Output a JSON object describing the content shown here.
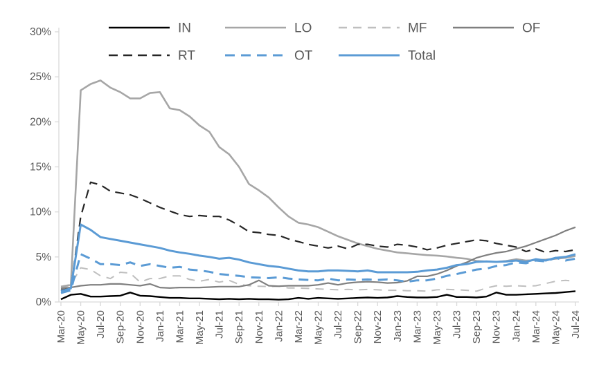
{
  "chart_data": {
    "type": "line",
    "title": "",
    "xlabel": "",
    "ylabel": "",
    "grid": false,
    "legend_position": "top",
    "yaxis": {
      "min": 0,
      "max": 30,
      "step": 5,
      "tick_labels": [
        "0%",
        "5%",
        "10%",
        "15%",
        "20%",
        "25%",
        "30%"
      ]
    },
    "xaxis": {
      "label_every_n_months": 2,
      "label_rotation_deg": -90,
      "first_label": "Mar-20",
      "last_label": "Jul-24"
    },
    "categories": [
      "Mar-20",
      "Apr-20",
      "May-20",
      "Jun-20",
      "Jul-20",
      "Aug-20",
      "Sep-20",
      "Oct-20",
      "Nov-20",
      "Dec-20",
      "Jan-21",
      "Feb-21",
      "Mar-21",
      "Apr-21",
      "May-21",
      "Jun-21",
      "Jul-21",
      "Aug-21",
      "Sep-21",
      "Oct-21",
      "Nov-21",
      "Dec-21",
      "Jan-22",
      "Feb-22",
      "Mar-22",
      "Apr-22",
      "May-22",
      "Jun-22",
      "Jul-22",
      "Aug-22",
      "Sep-22",
      "Oct-22",
      "Nov-22",
      "Dec-22",
      "Jan-23",
      "Feb-23",
      "Mar-23",
      "Apr-23",
      "May-23",
      "Jun-23",
      "Jul-23",
      "Aug-23",
      "Sep-23",
      "Oct-23",
      "Nov-23",
      "Dec-23",
      "Jan-24",
      "Feb-24",
      "Mar-24",
      "Apr-24",
      "May-24",
      "Jun-24",
      "Jul-24"
    ],
    "series": [
      {
        "name": "MF",
        "color": "#bfbfbf",
        "dash": "12 9",
        "width": 2,
        "values": [
          1.5,
          1.9,
          3.8,
          3.6,
          2.9,
          2.6,
          3.3,
          3.2,
          2.2,
          2.6,
          2.6,
          2.9,
          2.9,
          2.5,
          2.3,
          2.5,
          2.2,
          2.4,
          1.95,
          1.8,
          1.75,
          1.7,
          1.75,
          1.55,
          1.55,
          1.5,
          1.45,
          1.4,
          1.35,
          1.4,
          1.35,
          1.4,
          1.35,
          1.3,
          1.3,
          1.25,
          1.25,
          1.2,
          1.35,
          1.4,
          1.35,
          1.3,
          1.2,
          1.55,
          1.8,
          1.75,
          1.8,
          1.75,
          1.8,
          2.05,
          2.3,
          2.4,
          2.3
        ]
      },
      {
        "name": "LO",
        "color": "#a6a6a6",
        "dash": "",
        "width": 2.6,
        "values": [
          1.7,
          1.9,
          23.5,
          24.2,
          24.6,
          23.8,
          23.3,
          22.6,
          22.6,
          23.2,
          23.3,
          21.5,
          21.3,
          20.6,
          19.6,
          18.9,
          17.2,
          16.4,
          15.0,
          13.1,
          12.4,
          11.6,
          10.5,
          9.5,
          8.8,
          8.6,
          8.3,
          7.8,
          7.3,
          6.9,
          6.5,
          6.2,
          5.9,
          5.7,
          5.5,
          5.4,
          5.3,
          5.2,
          5.15,
          5.05,
          4.9,
          4.8,
          4.55,
          4.5,
          4.45,
          4.55,
          4.75,
          4.6,
          4.65,
          4.7,
          4.8,
          4.9,
          5.1
        ]
      },
      {
        "name": "OF",
        "color": "#7f7f7f",
        "dash": "",
        "width": 2.2,
        "values": [
          1.5,
          1.6,
          1.8,
          1.9,
          1.9,
          2.0,
          2.0,
          1.9,
          1.8,
          2.0,
          1.6,
          1.55,
          1.6,
          1.6,
          1.6,
          1.65,
          1.7,
          1.7,
          1.7,
          1.9,
          2.4,
          1.8,
          1.75,
          1.8,
          1.8,
          1.8,
          1.9,
          2.1,
          1.9,
          2.1,
          2.2,
          2.25,
          2.2,
          2.1,
          2.15,
          2.35,
          2.85,
          2.85,
          3.1,
          3.5,
          4.0,
          4.4,
          4.9,
          5.2,
          5.45,
          5.6,
          5.9,
          6.2,
          6.6,
          7.0,
          7.4,
          7.9,
          8.3
        ]
      },
      {
        "name": "RT",
        "color": "#262626",
        "dash": "13 8",
        "width": 2.2,
        "values": [
          1.3,
          1.5,
          9.5,
          13.3,
          13.0,
          12.3,
          12.1,
          11.9,
          11.5,
          11.0,
          10.5,
          10.1,
          9.7,
          9.5,
          9.6,
          9.5,
          9.5,
          9.1,
          8.5,
          7.8,
          7.7,
          7.5,
          7.4,
          7.0,
          6.7,
          6.4,
          6.2,
          6.0,
          6.2,
          5.9,
          6.4,
          6.4,
          6.2,
          6.1,
          6.4,
          6.3,
          6.1,
          5.8,
          6.0,
          6.3,
          6.5,
          6.7,
          6.9,
          6.8,
          6.5,
          6.3,
          6.1,
          5.6,
          5.9,
          5.5,
          5.7,
          5.6,
          5.8
        ]
      },
      {
        "name": "IN",
        "color": "#000000",
        "dash": "",
        "width": 2.4,
        "values": [
          0.3,
          0.8,
          0.9,
          0.6,
          0.6,
          0.65,
          0.7,
          1.05,
          0.7,
          0.65,
          0.55,
          0.45,
          0.45,
          0.4,
          0.4,
          0.35,
          0.3,
          0.35,
          0.3,
          0.35,
          0.3,
          0.3,
          0.25,
          0.3,
          0.45,
          0.35,
          0.45,
          0.4,
          0.35,
          0.4,
          0.45,
          0.5,
          0.45,
          0.5,
          0.65,
          0.55,
          0.5,
          0.5,
          0.55,
          0.8,
          0.55,
          0.55,
          0.5,
          0.6,
          1.05,
          0.8,
          0.8,
          0.85,
          0.9,
          0.95,
          1.0,
          1.1,
          1.2
        ]
      },
      {
        "name": "OT",
        "color": "#5b9bd5",
        "dash": "14 9",
        "width": 3,
        "values": [
          1.0,
          1.3,
          5.3,
          4.8,
          4.2,
          4.2,
          4.1,
          4.4,
          4.0,
          4.2,
          4.0,
          3.8,
          3.9,
          3.6,
          3.5,
          3.35,
          3.1,
          3.0,
          2.9,
          2.75,
          2.7,
          2.65,
          2.75,
          2.6,
          2.5,
          2.45,
          2.4,
          2.6,
          2.4,
          2.5,
          2.45,
          2.5,
          2.45,
          2.5,
          2.4,
          2.25,
          2.4,
          2.4,
          2.6,
          2.9,
          3.1,
          3.35,
          3.6,
          3.7,
          4.0,
          4.1,
          4.4,
          4.3,
          4.6,
          4.5,
          4.9,
          4.6,
          4.8
        ]
      },
      {
        "name": "Total",
        "color": "#5b9bd5",
        "dash": "",
        "width": 3,
        "values": [
          1.2,
          1.5,
          8.6,
          8.0,
          7.2,
          7.0,
          6.8,
          6.6,
          6.4,
          6.2,
          6.0,
          5.7,
          5.5,
          5.35,
          5.15,
          5.0,
          4.8,
          4.9,
          4.7,
          4.4,
          4.2,
          4.0,
          3.9,
          3.7,
          3.5,
          3.4,
          3.4,
          3.5,
          3.5,
          3.45,
          3.4,
          3.5,
          3.3,
          3.3,
          3.3,
          3.3,
          3.35,
          3.5,
          3.6,
          3.8,
          4.1,
          4.2,
          4.45,
          4.5,
          4.45,
          4.5,
          4.6,
          4.45,
          4.75,
          4.6,
          4.9,
          5.0,
          5.3
        ]
      }
    ],
    "legend": {
      "rows": [
        [
          "IN",
          "LO",
          "MF",
          "OF"
        ],
        [
          "RT",
          "OT",
          "Total"
        ]
      ],
      "label_color": "#595959"
    },
    "axis_color": "#d9d9d9",
    "tick_label_color": "#595959"
  }
}
